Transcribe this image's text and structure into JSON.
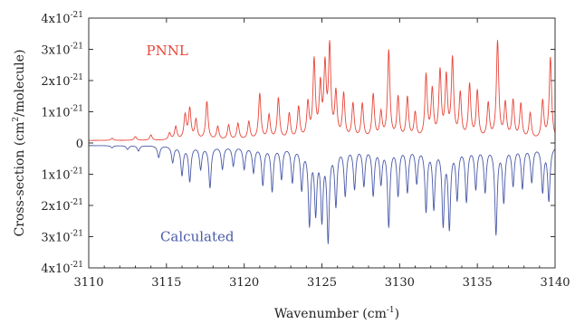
{
  "chart_data": {
    "type": "line",
    "xlabel": "Wavenumber (cm",
    "xlabel_sup": "-1",
    "xlabel_end": ")",
    "ylabel": "Cross-section (cm",
    "ylabel_sup": "2",
    "ylabel_end": "/molecule)",
    "xlim": [
      3110,
      3140
    ],
    "ylim": [
      -4e-21,
      4e-21
    ],
    "grid": false,
    "x_ticks": [
      "3110",
      "3115",
      "3120",
      "3125",
      "3130",
      "3135",
      "3140"
    ],
    "y_ticks": [
      {
        "value": 4,
        "base": "4x10",
        "exp": "-21"
      },
      {
        "value": 3,
        "base": "3x10",
        "exp": "-21"
      },
      {
        "value": 2,
        "base": "2x10",
        "exp": "-21"
      },
      {
        "value": 1,
        "base": "1x10",
        "exp": "-21"
      },
      {
        "value": 0,
        "base": "0",
        "exp": ""
      },
      {
        "value": -1,
        "base": "1x10",
        "exp": "-21"
      },
      {
        "value": -2,
        "base": "2x10",
        "exp": "-21"
      },
      {
        "value": -3,
        "base": "3x10",
        "exp": "-21"
      },
      {
        "value": -4,
        "base": "4x10",
        "exp": "-21"
      }
    ],
    "series": [
      {
        "name": "PNNL",
        "color": "#e8463a",
        "baseline": 0.08,
        "peaks": [
          [
            3111.5,
            0.15
          ],
          [
            3113.0,
            0.2
          ],
          [
            3114.0,
            0.25
          ],
          [
            3115.2,
            0.3
          ],
          [
            3115.6,
            0.5
          ],
          [
            3116.2,
            0.85
          ],
          [
            3116.5,
            1.05
          ],
          [
            3116.9,
            0.7
          ],
          [
            3117.6,
            1.3
          ],
          [
            3118.3,
            0.5
          ],
          [
            3119.0,
            0.55
          ],
          [
            3119.6,
            0.6
          ],
          [
            3120.3,
            0.65
          ],
          [
            3121.0,
            1.55
          ],
          [
            3121.6,
            0.85
          ],
          [
            3122.2,
            1.4
          ],
          [
            3122.9,
            0.9
          ],
          [
            3123.5,
            1.1
          ],
          [
            3124.1,
            1.2
          ],
          [
            3124.5,
            2.55
          ],
          [
            3124.9,
            1.7
          ],
          [
            3125.2,
            2.3
          ],
          [
            3125.5,
            2.95
          ],
          [
            3125.9,
            1.5
          ],
          [
            3126.4,
            1.5
          ],
          [
            3127.0,
            1.2
          ],
          [
            3127.6,
            1.2
          ],
          [
            3128.3,
            1.5
          ],
          [
            3128.8,
            0.9
          ],
          [
            3129.3,
            2.9
          ],
          [
            3129.9,
            1.4
          ],
          [
            3130.5,
            1.4
          ],
          [
            3131.0,
            0.9
          ],
          [
            3131.7,
            2.1
          ],
          [
            3132.1,
            1.6
          ],
          [
            3132.6,
            2.2
          ],
          [
            3133.0,
            2.0
          ],
          [
            3133.4,
            2.6
          ],
          [
            3133.9,
            1.5
          ],
          [
            3134.5,
            1.8
          ],
          [
            3135.0,
            1.6
          ],
          [
            3135.7,
            1.2
          ],
          [
            3136.3,
            3.2
          ],
          [
            3136.8,
            1.2
          ],
          [
            3137.3,
            1.3
          ],
          [
            3137.8,
            1.2
          ],
          [
            3138.4,
            0.9
          ],
          [
            3139.2,
            1.3
          ],
          [
            3139.7,
            2.7
          ]
        ]
      },
      {
        "name": "Calculated",
        "color": "#4a5aa8",
        "baseline": -0.08,
        "peaks": [
          [
            3111.5,
            -0.15
          ],
          [
            3112.5,
            -0.2
          ],
          [
            3113.2,
            -0.25
          ],
          [
            3114.5,
            -0.45
          ],
          [
            3115.4,
            -0.6
          ],
          [
            3116.0,
            -1.0
          ],
          [
            3116.5,
            -1.2
          ],
          [
            3117.2,
            -0.8
          ],
          [
            3117.8,
            -1.4
          ],
          [
            3118.6,
            -0.8
          ],
          [
            3119.3,
            -0.7
          ],
          [
            3120.0,
            -0.8
          ],
          [
            3120.6,
            -0.9
          ],
          [
            3121.2,
            -1.3
          ],
          [
            3121.8,
            -1.5
          ],
          [
            3122.4,
            -1.1
          ],
          [
            3123.1,
            -1.2
          ],
          [
            3123.7,
            -1.4
          ],
          [
            3124.2,
            -2.5
          ],
          [
            3124.6,
            -2.1
          ],
          [
            3125.0,
            -2.3
          ],
          [
            3125.4,
            -3.0
          ],
          [
            3125.9,
            -1.9
          ],
          [
            3126.5,
            -1.6
          ],
          [
            3127.1,
            -1.4
          ],
          [
            3127.7,
            -1.3
          ],
          [
            3128.3,
            -1.6
          ],
          [
            3128.8,
            -1.2
          ],
          [
            3129.3,
            -2.6
          ],
          [
            3129.9,
            -1.6
          ],
          [
            3130.5,
            -1.5
          ],
          [
            3131.1,
            -1.2
          ],
          [
            3131.7,
            -2.1
          ],
          [
            3132.2,
            -2.0
          ],
          [
            3132.8,
            -2.5
          ],
          [
            3133.2,
            -2.6
          ],
          [
            3133.7,
            -1.7
          ],
          [
            3134.3,
            -1.8
          ],
          [
            3134.9,
            -1.4
          ],
          [
            3135.5,
            -1.5
          ],
          [
            3136.2,
            -2.85
          ],
          [
            3136.7,
            -1.8
          ],
          [
            3137.3,
            -1.3
          ],
          [
            3137.9,
            -1.4
          ],
          [
            3138.5,
            -1.2
          ],
          [
            3139.2,
            -1.5
          ],
          [
            3139.6,
            -1.8
          ]
        ]
      }
    ],
    "annotations": [
      {
        "text": "PNNL",
        "series": 0,
        "x": 3113.7,
        "y": 2.95
      },
      {
        "text": "Calculated",
        "series": 1,
        "x": 3114.6,
        "y": -3.0
      }
    ]
  }
}
